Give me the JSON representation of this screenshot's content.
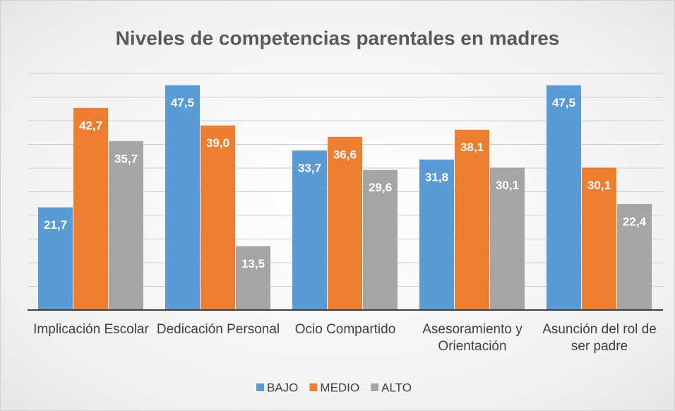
{
  "chart_data": {
    "type": "bar",
    "title": "Niveles de competencias parentales en madres",
    "categories": [
      "Implicación Escolar",
      "Dedicación Personal",
      "Ocio Compartido",
      "Asesoramiento y Orientación",
      "Asunción del rol de ser padre"
    ],
    "series": [
      {
        "name": "BAJO",
        "color": "#5b9bd5",
        "values": [
          21.7,
          47.5,
          33.7,
          31.8,
          47.5
        ],
        "value_labels": [
          "21,7",
          "47,5",
          "33,7",
          "31,8",
          "47,5"
        ]
      },
      {
        "name": "MEDIO",
        "color": "#ed7d31",
        "values": [
          42.7,
          39.0,
          36.6,
          38.1,
          30.1
        ],
        "value_labels": [
          "42,7",
          "39,0",
          "36,6",
          "38,1",
          "30,1"
        ]
      },
      {
        "name": "ALTO",
        "color": "#a5a5a5",
        "values": [
          35.7,
          13.5,
          29.6,
          30.1,
          22.4
        ],
        "value_labels": [
          "35,7",
          "13,5",
          "29,6",
          "30,1",
          "22,4"
        ]
      }
    ],
    "ylim": [
      0,
      50
    ],
    "yticks": [
      0,
      5,
      10,
      15,
      20,
      25,
      30,
      35,
      40,
      45,
      50
    ],
    "grid": true,
    "legend": "bottom"
  }
}
